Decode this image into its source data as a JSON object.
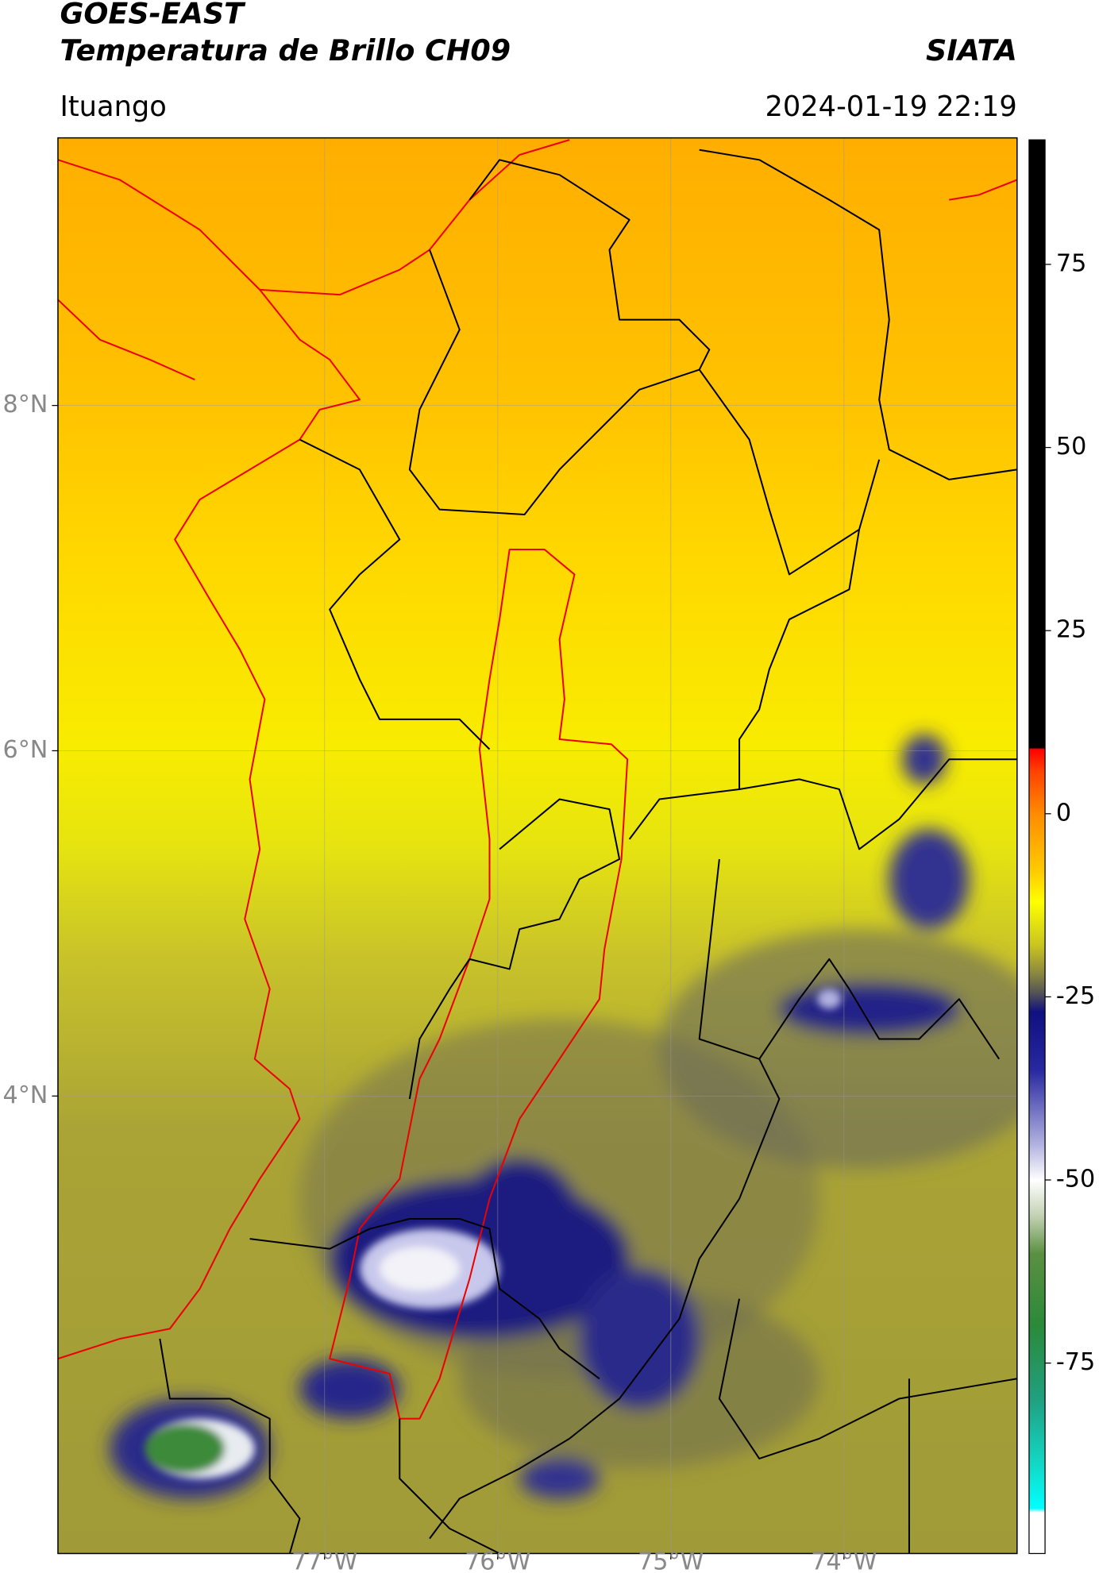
{
  "header": {
    "satellite": "GOES-EAST",
    "product": "Temperatura de Brillo CH09",
    "source": "SIATA",
    "region": "Ituango",
    "datetime": "2024-01-19 22:19"
  },
  "chart_data": {
    "type": "map",
    "xlim": [
      -78.54,
      -73.0
    ],
    "ylim": [
      1.35,
      9.55
    ],
    "xticks": [
      {
        "value": -77,
        "label": "77°W"
      },
      {
        "value": -76,
        "label": "76°W"
      },
      {
        "value": -75,
        "label": "75°W"
      },
      {
        "value": -74,
        "label": "74°W"
      }
    ],
    "yticks": [
      {
        "value": 4,
        "label": "4°N"
      },
      {
        "value": 6,
        "label": "6°N"
      },
      {
        "value": 8,
        "label": "8°N"
      }
    ],
    "grid": true,
    "colorbar": {
      "lim": [
        -101,
        92
      ],
      "ticks": [
        -75,
        -50,
        -25,
        0,
        25,
        50,
        75
      ]
    }
  }
}
